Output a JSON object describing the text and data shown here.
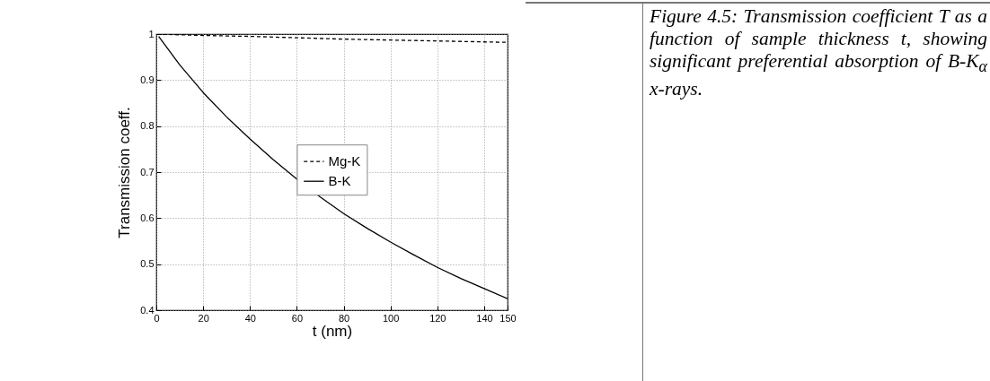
{
  "chart_data": {
    "type": "line",
    "xlabel": "t (nm)",
    "ylabel": "Transmission coeff.",
    "annotations": [
      "Figure 4.5: Transmission coefficient T as a function of sample thickness t, showing significant preferential absorption of B-K$_{α}$ x-rays."
    ],
    "xlim": [
      0,
      150
    ],
    "xticks": [
      0,
      20,
      40,
      60,
      80,
      100,
      120,
      140,
      150
    ],
    "ylim": [
      0.4,
      1
    ],
    "yticks": [
      0.4,
      0.5,
      0.6,
      0.7,
      0.8,
      0.9,
      1
    ],
    "grid": true,
    "legend": "center",
    "series": [
      {
        "name": "Mg-K",
        "color": "#000000",
        "line_style": "dashed",
        "x": [
          0,
          20,
          40,
          60,
          80,
          100,
          120,
          140,
          150
        ],
        "values": [
          1.0,
          0.997,
          0.995,
          0.992,
          0.989,
          0.987,
          0.985,
          0.983,
          0.982
        ]
      },
      {
        "name": "B-K",
        "color": "#000000",
        "line_style": "solid",
        "x": [
          1,
          10,
          20,
          30,
          40,
          50,
          60,
          70,
          80,
          90,
          100,
          110,
          120,
          130,
          140,
          150
        ],
        "values": [
          0.995,
          0.933,
          0.873,
          0.82,
          0.772,
          0.727,
          0.685,
          0.646,
          0.61,
          0.578,
          0.548,
          0.52,
          0.493,
          0.469,
          0.447,
          0.425
        ]
      }
    ]
  }
}
